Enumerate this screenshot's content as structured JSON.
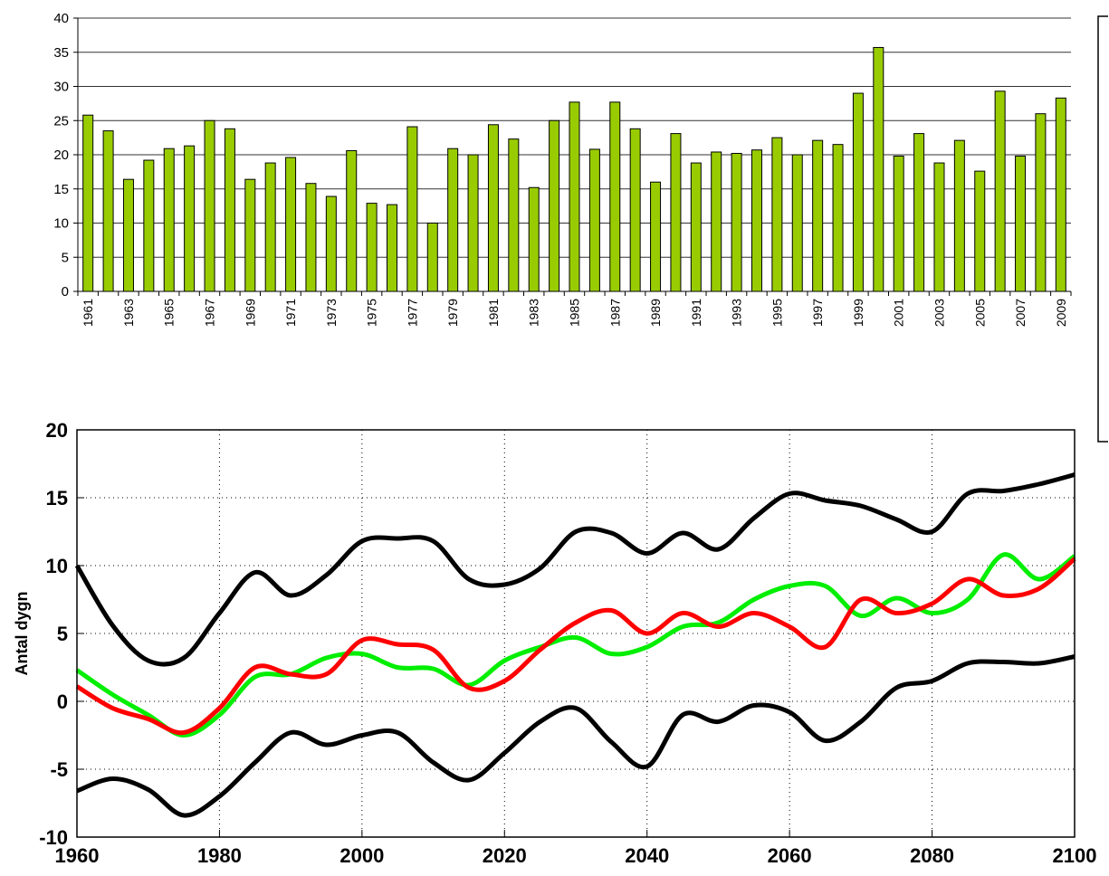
{
  "chart_data": [
    {
      "type": "bar",
      "color": "#99cc00",
      "categories": [
        "1961",
        null,
        "1963",
        null,
        "1965",
        null,
        "1967",
        null,
        "1969",
        null,
        "1971",
        null,
        "1973",
        null,
        "1975",
        null,
        "1977",
        null,
        "1979",
        null,
        "1981",
        null,
        "1983",
        null,
        "1985",
        null,
        "1987",
        null,
        "1989",
        null,
        "1991",
        null,
        "1993",
        null,
        "1995",
        null,
        "1997",
        null,
        "1999",
        null,
        "2001",
        null,
        "2003",
        null,
        "2005",
        null,
        "2007",
        null,
        "2009"
      ],
      "values": [
        25.8,
        23.5,
        16.4,
        19.2,
        20.9,
        21.3,
        25.0,
        23.8,
        16.4,
        18.8,
        19.6,
        15.8,
        13.9,
        20.6,
        12.9,
        12.7,
        24.1,
        10.0,
        20.9,
        20.0,
        24.4,
        22.3,
        15.2,
        25.0,
        27.7,
        20.8,
        27.7,
        23.8,
        16.0,
        23.1,
        18.8,
        20.4,
        20.2,
        20.7,
        22.5,
        20.0,
        22.1,
        21.5,
        29.0,
        35.7,
        19.8,
        23.1,
        18.8,
        22.1,
        17.6,
        29.3,
        19.8,
        26.0,
        28.3
      ],
      "ylim": [
        0,
        40
      ],
      "yticks": [
        0,
        5,
        10,
        15,
        20,
        25,
        30,
        35,
        40
      ],
      "grid": true
    },
    {
      "type": "line",
      "ylabel": "Antal dygn",
      "x": [
        1960,
        1965,
        1970,
        1975,
        1980,
        1985,
        1990,
        1995,
        2000,
        2005,
        2010,
        2015,
        2020,
        2025,
        2030,
        2035,
        2040,
        2045,
        2050,
        2055,
        2060,
        2065,
        2070,
        2075,
        2080,
        2085,
        2090,
        2095,
        2100
      ],
      "series": [
        {
          "color": "#000000",
          "values": [
            10,
            5.6,
            3.0,
            3.2,
            6.5,
            9.5,
            7.8,
            9.3,
            11.8,
            12.0,
            11.8,
            9.0,
            8.6,
            9.8,
            12.5,
            12.4,
            10.9,
            12.4,
            11.2,
            13.5,
            15.3,
            14.8,
            14.4,
            13.4,
            12.5,
            15.3,
            15.5,
            16.0,
            16.7
          ]
        },
        {
          "color": "#000000",
          "values": [
            -6.6,
            -5.7,
            -6.5,
            -8.4,
            -7.0,
            -4.5,
            -2.3,
            -3.2,
            -2.5,
            -2.3,
            -4.5,
            -5.8,
            -3.8,
            -1.5,
            -0.5,
            -3.0,
            -4.8,
            -1.0,
            -1.5,
            -0.3,
            -0.8,
            -2.9,
            -1.5,
            1.0,
            1.5,
            2.8,
            2.9,
            2.8,
            3.3
          ]
        },
        {
          "color": "#00ee00",
          "values": [
            2.3,
            0.5,
            -1.0,
            -2.5,
            -1.0,
            1.8,
            2.0,
            3.2,
            3.5,
            2.5,
            2.4,
            1.2,
            3.0,
            4.0,
            4.7,
            3.5,
            4.0,
            5.5,
            5.8,
            7.5,
            8.5,
            8.5,
            6.3,
            7.6,
            6.5,
            7.5,
            10.8,
            9.0,
            10.7
          ]
        },
        {
          "color": "#ff0000",
          "values": [
            1.1,
            -0.5,
            -1.3,
            -2.3,
            -0.5,
            2.5,
            2.0,
            2.0,
            4.5,
            4.2,
            3.8,
            1.0,
            1.5,
            3.8,
            5.8,
            6.7,
            5.0,
            6.5,
            5.5,
            6.5,
            5.5,
            4.0,
            7.5,
            6.5,
            7.2,
            9.0,
            7.8,
            8.3,
            10.5
          ]
        }
      ],
      "xlim": [
        1960,
        2100
      ],
      "xticks": [
        1960,
        1980,
        2000,
        2020,
        2040,
        2060,
        2080,
        2100
      ],
      "ylim": [
        -10,
        20
      ],
      "yticks": [
        -10,
        -5,
        0,
        5,
        10,
        15,
        20
      ],
      "grid": true
    }
  ]
}
